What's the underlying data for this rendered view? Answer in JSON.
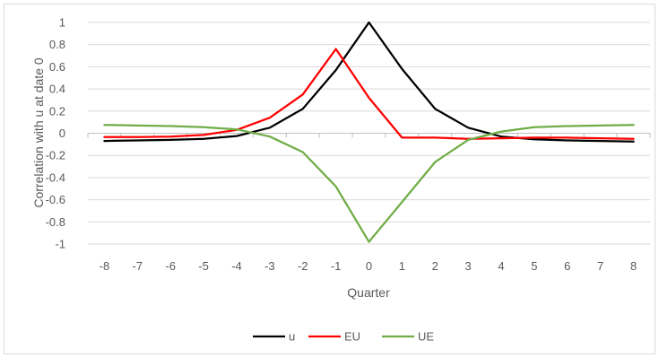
{
  "chart_data": {
    "type": "line",
    "xlabel": "Quarter",
    "ylabel": "Correlation with u at date 0",
    "ylim": [
      -1,
      1
    ],
    "yticks": [
      "1",
      "0.8",
      "0.6",
      "0.4",
      "0.2",
      "0",
      "-0.2",
      "-0.4",
      "-0.6",
      "-0.8",
      "-1"
    ],
    "ytick_values": [
      1,
      0.8,
      0.6,
      0.4,
      0.2,
      0,
      -0.2,
      -0.4,
      -0.6,
      -0.8,
      -1
    ],
    "categories": [
      "-8",
      "-7",
      "-6",
      "-5",
      "-4",
      "-3",
      "-2",
      "-1",
      "0",
      "1",
      "2",
      "3",
      "4",
      "5",
      "6",
      "7",
      "8"
    ],
    "grid": "horizontal",
    "legend_position": "bottom",
    "series": [
      {
        "name": "u",
        "color": "#000000",
        "values": [
          -0.07,
          -0.065,
          -0.06,
          -0.05,
          -0.025,
          0.05,
          0.22,
          0.57,
          1.0,
          0.58,
          0.22,
          0.05,
          -0.03,
          -0.055,
          -0.065,
          -0.07,
          -0.075
        ]
      },
      {
        "name": "EU",
        "color": "#ff0000",
        "values": [
          -0.035,
          -0.035,
          -0.03,
          -0.015,
          0.03,
          0.14,
          0.35,
          0.76,
          0.32,
          -0.04,
          -0.04,
          -0.05,
          -0.045,
          -0.04,
          -0.04,
          -0.045,
          -0.05
        ]
      },
      {
        "name": "UE",
        "color": "#70ad47",
        "values": [
          0.075,
          0.07,
          0.065,
          0.055,
          0.035,
          -0.03,
          -0.17,
          -0.48,
          -0.98,
          -0.62,
          -0.26,
          -0.06,
          0.015,
          0.055,
          0.065,
          0.07,
          0.075
        ]
      }
    ]
  }
}
